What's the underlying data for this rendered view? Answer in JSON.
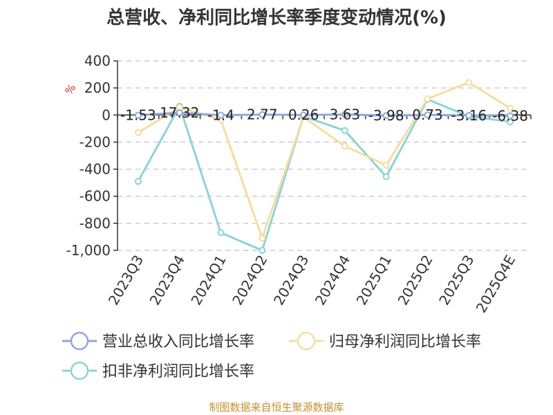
{
  "chart_data": {
    "type": "line",
    "title": "总营收、净利同比增长率季度变动情况(%)",
    "unit": "%",
    "categories": [
      "2023Q3",
      "2023Q4",
      "2024Q1",
      "2024Q2",
      "2024Q3",
      "2024Q4",
      "2025Q1",
      "2025Q2",
      "2025Q3",
      "2025Q4E"
    ],
    "ylim": [
      -1000,
      400
    ],
    "yticks": [
      400,
      200,
      0,
      -200,
      -400,
      -600,
      -800,
      -1000
    ],
    "ytick_labels": [
      "400",
      "200",
      "0",
      "-200",
      "-400",
      "-600",
      "-800",
      "-1,000"
    ],
    "grid": true,
    "legend_position": "bottom",
    "series": [
      {
        "name": "营业总收入同比增长率",
        "color": "#8fa8d8",
        "values": [
          -1.53,
          17.32,
          -1.4,
          2.77,
          0.26,
          3.63,
          -3.98,
          0.73,
          -3.16,
          -6.38
        ],
        "data_labels": [
          "-1.53",
          "17.32",
          "-1.4",
          "2.77",
          "0.26",
          "3.63",
          "-3.98",
          "0.73",
          "-3.16",
          "-6.38"
        ]
      },
      {
        "name": "归母净利润同比增长率",
        "color": "#f7dca0",
        "values": [
          -130,
          55,
          -35,
          -910,
          -15,
          -230,
          -370,
          120,
          240,
          50
        ]
      },
      {
        "name": "扣非净利润同比增长率",
        "color": "#8dd3d8",
        "values": [
          -490,
          65,
          -870,
          -1000,
          -10,
          -115,
          -455,
          115,
          -10,
          -50
        ]
      }
    ],
    "source": "制图数据来自恒生聚源数据库"
  }
}
